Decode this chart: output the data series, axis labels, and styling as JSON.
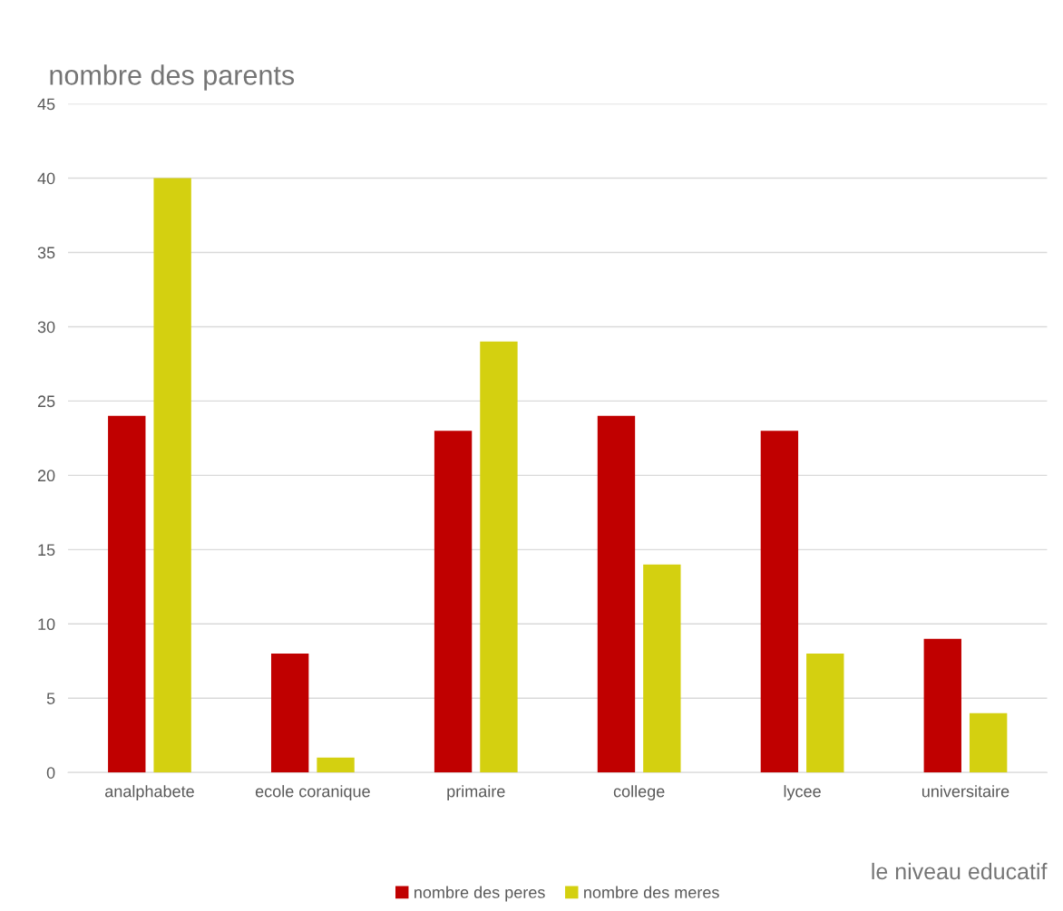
{
  "chart_data": {
    "type": "bar",
    "ylabel": "nombre des parents",
    "xlabel": "le niveau educatif",
    "categories": [
      "analphabete",
      "ecole coranique",
      "primaire",
      "college",
      "lycee",
      "universitaire"
    ],
    "series": [
      {
        "name": "nombre des peres",
        "color": "#c00000",
        "values": [
          24,
          8,
          23,
          24,
          23,
          9
        ]
      },
      {
        "name": "nombre des meres",
        "color": "#d4d010",
        "values": [
          40,
          1,
          29,
          14,
          8,
          4
        ]
      }
    ],
    "ylim": [
      0,
      45
    ],
    "yticks": [
      0,
      5,
      10,
      15,
      20,
      25,
      30,
      35,
      40,
      45
    ],
    "grid": "y",
    "legend": "bottom"
  }
}
